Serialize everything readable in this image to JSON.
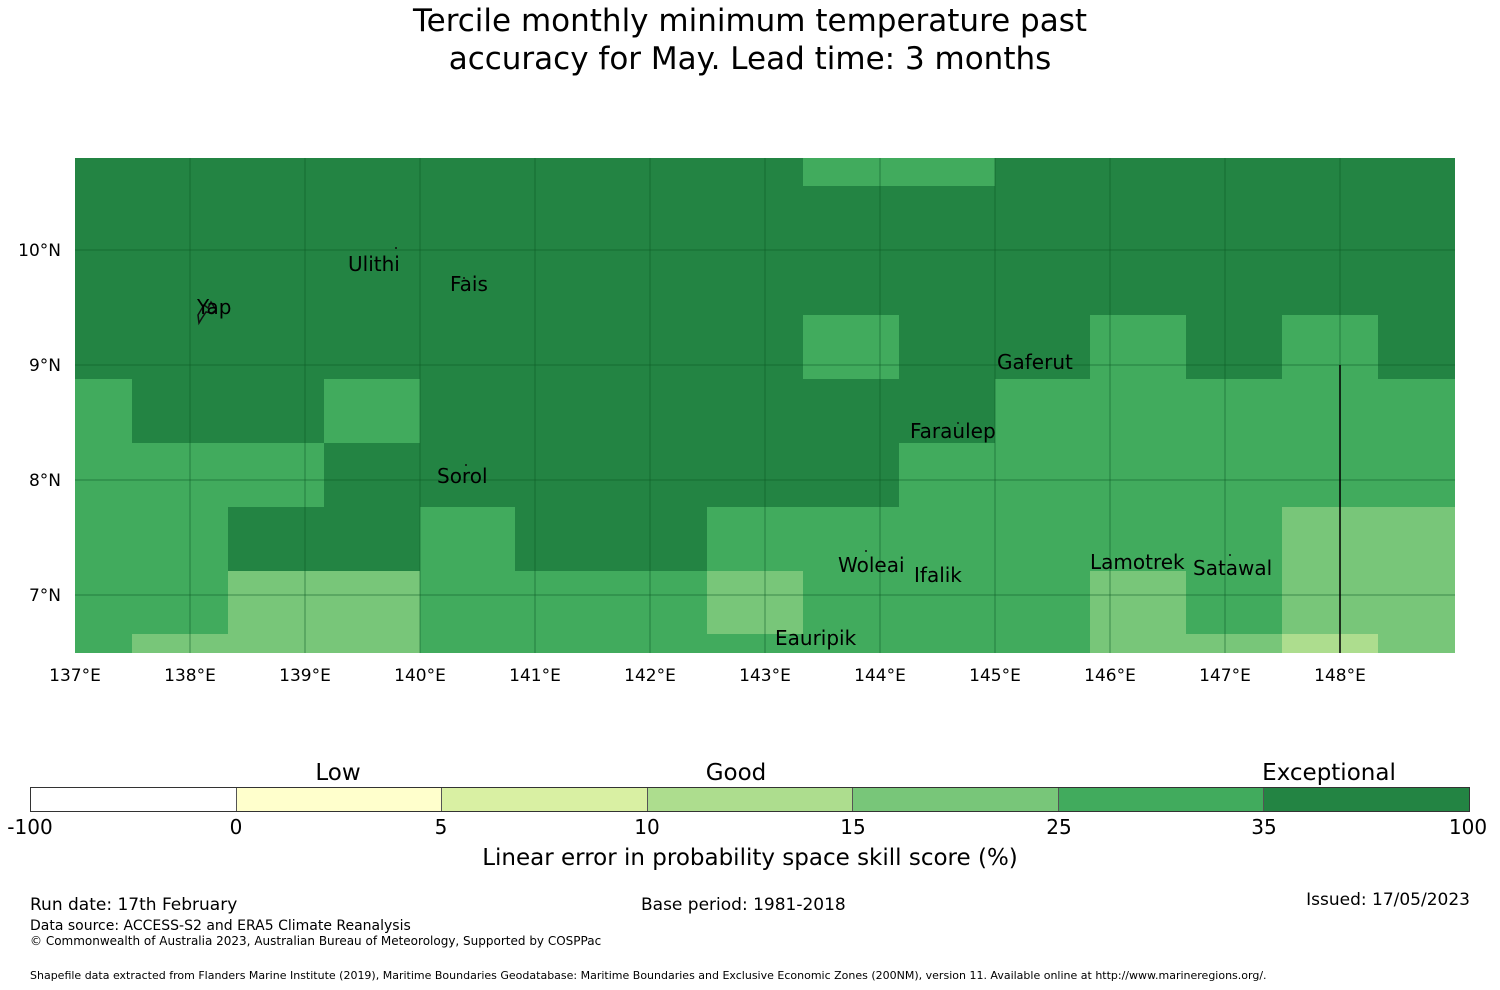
{
  "title": {
    "line1": "Tercile monthly minimum temperature past",
    "line2": "accuracy for May. Lead time: 3 months"
  },
  "map": {
    "lat_labels": [
      "10°N",
      "9°N",
      "8°N",
      "7°N"
    ],
    "lon_labels": [
      "137°E",
      "138°E",
      "139°E",
      "140°E",
      "141°E",
      "142°E",
      "143°E",
      "144°E",
      "145°E",
      "146°E",
      "147°E",
      "148°E"
    ],
    "places": [
      "Ulithi",
      "Fais",
      "Yap",
      "Gaferut",
      "Faraulep",
      "Sorol",
      "Woleai",
      "Ifalik",
      "Lamotrek",
      "Satawal",
      "Eauripik"
    ],
    "colors": {
      "exceptional": "#238443",
      "very_good": "#41ab5d",
      "good": "#78c679",
      "fair": "#addd8e"
    }
  },
  "colorbar": {
    "category_labels": [
      "Low",
      "Good",
      "Exceptional"
    ],
    "ticks": [
      "-100",
      "0",
      "5",
      "10",
      "15",
      "25",
      "35",
      "100"
    ],
    "colors": [
      "#ffffff",
      "#ffffcc",
      "#d9f0a3",
      "#addd8e",
      "#78c679",
      "#41ab5d",
      "#238443"
    ],
    "title": "Linear error in probability space skill score (%)"
  },
  "footer": {
    "run_date": "Run date: 17th February",
    "base_period": "Base period: 1981-2018",
    "issued": "Issued: 17/05/2023",
    "data_source": "Data source: ACCESS-S2 and ERA5 Climate Reanalysis",
    "copyright": "© Commonwealth of Australia 2023, Australian Bureau of Meteorology, Supported by COSPPac",
    "shapefile": "Shapefile data extracted from Flanders Marine Institute (2019), Maritime Boundaries Geodatabase: Maritime Boundaries and Exclusive Economic Zones (200NM), version 11. Available online at http://www.marineregions.org/."
  }
}
